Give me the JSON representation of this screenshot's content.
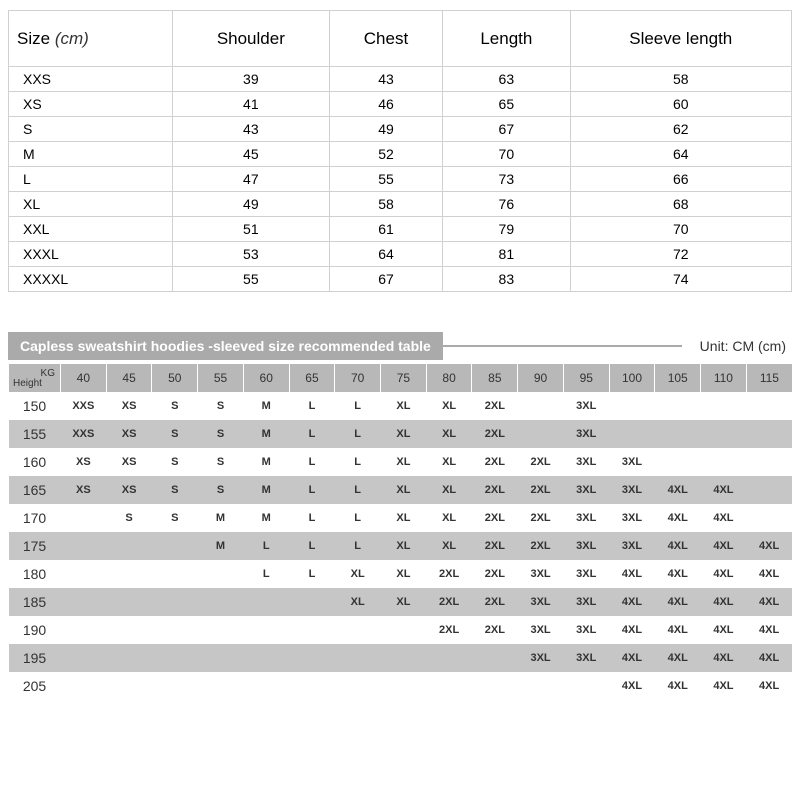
{
  "sizeTable": {
    "header": {
      "sizeLabel": "Size",
      "sizeUnit": "(cm)",
      "columns": [
        "Shoulder",
        "Chest",
        "Length",
        "Sleeve length"
      ]
    },
    "rows": [
      {
        "size": "XXS",
        "vals": [
          "39",
          "43",
          "63",
          "58"
        ]
      },
      {
        "size": "XS",
        "vals": [
          "41",
          "46",
          "65",
          "60"
        ]
      },
      {
        "size": "S",
        "vals": [
          "43",
          "49",
          "67",
          "62"
        ]
      },
      {
        "size": "M",
        "vals": [
          "45",
          "52",
          "70",
          "64"
        ]
      },
      {
        "size": "L",
        "vals": [
          "47",
          "55",
          "73",
          "66"
        ]
      },
      {
        "size": "XL",
        "vals": [
          "49",
          "58",
          "76",
          "68"
        ]
      },
      {
        "size": "XXL",
        "vals": [
          "51",
          "61",
          "79",
          "70"
        ]
      },
      {
        "size": "XXXL",
        "vals": [
          "53",
          "64",
          "81",
          "72"
        ]
      },
      {
        "size": "XXXXL",
        "vals": [
          "55",
          "67",
          "83",
          "74"
        ]
      }
    ]
  },
  "rec": {
    "title": "Capless sweatshirt hoodies -sleeved size recommended table",
    "unitLabel": "Unit: CM (cm)",
    "corner": {
      "kg": "KG",
      "height": "Height"
    },
    "weights": [
      "40",
      "45",
      "50",
      "55",
      "60",
      "65",
      "70",
      "75",
      "80",
      "85",
      "90",
      "95",
      "100",
      "105",
      "110",
      "115"
    ],
    "rows": [
      {
        "h": "150",
        "cells": [
          "XXS",
          "XS",
          "S",
          "S",
          "M",
          "L",
          "L",
          "XL",
          "XL",
          "2XL",
          "",
          "3XL",
          "",
          "",
          "",
          ""
        ]
      },
      {
        "h": "155",
        "cells": [
          "XXS",
          "XS",
          "S",
          "S",
          "M",
          "L",
          "L",
          "XL",
          "XL",
          "2XL",
          "",
          "3XL",
          "",
          "",
          "",
          ""
        ]
      },
      {
        "h": "160",
        "cells": [
          "XS",
          "XS",
          "S",
          "S",
          "M",
          "L",
          "L",
          "XL",
          "XL",
          "2XL",
          "2XL",
          "3XL",
          "3XL",
          "",
          "",
          ""
        ]
      },
      {
        "h": "165",
        "cells": [
          "XS",
          "XS",
          "S",
          "S",
          "M",
          "L",
          "L",
          "XL",
          "XL",
          "2XL",
          "2XL",
          "3XL",
          "3XL",
          "4XL",
          "4XL",
          ""
        ]
      },
      {
        "h": "170",
        "cells": [
          "",
          "S",
          "S",
          "M",
          "M",
          "L",
          "L",
          "XL",
          "XL",
          "2XL",
          "2XL",
          "3XL",
          "3XL",
          "4XL",
          "4XL",
          ""
        ]
      },
      {
        "h": "175",
        "cells": [
          "",
          "",
          "",
          "M",
          "L",
          "L",
          "L",
          "XL",
          "XL",
          "2XL",
          "2XL",
          "3XL",
          "3XL",
          "4XL",
          "4XL",
          "4XL"
        ]
      },
      {
        "h": "180",
        "cells": [
          "",
          "",
          "",
          "",
          "L",
          "L",
          "XL",
          "XL",
          "2XL",
          "2XL",
          "3XL",
          "3XL",
          "4XL",
          "4XL",
          "4XL",
          "4XL"
        ]
      },
      {
        "h": "185",
        "cells": [
          "",
          "",
          "",
          "",
          "",
          "",
          "XL",
          "XL",
          "2XL",
          "2XL",
          "3XL",
          "3XL",
          "4XL",
          "4XL",
          "4XL",
          "4XL"
        ]
      },
      {
        "h": "190",
        "cells": [
          "",
          "",
          "",
          "",
          "",
          "",
          "",
          "",
          "2XL",
          "2XL",
          "3XL",
          "3XL",
          "4XL",
          "4XL",
          "4XL",
          "4XL"
        ]
      },
      {
        "h": "195",
        "cells": [
          "",
          "",
          "",
          "",
          "",
          "",
          "",
          "",
          "",
          "",
          "3XL",
          "3XL",
          "4XL",
          "4XL",
          "4XL",
          "4XL"
        ]
      },
      {
        "h": "205",
        "cells": [
          "",
          "",
          "",
          "",
          "",
          "",
          "",
          "",
          "",
          "",
          "",
          "",
          "4XL",
          "4XL",
          "4XL",
          "4XL"
        ]
      }
    ]
  },
  "style": {
    "headerBg": "#b8b8b8",
    "stripeBg": "#c6c6c6",
    "titleBg": "#aaaaaa",
    "borderColor": "#d0d0d0",
    "textColor": "#333333"
  }
}
